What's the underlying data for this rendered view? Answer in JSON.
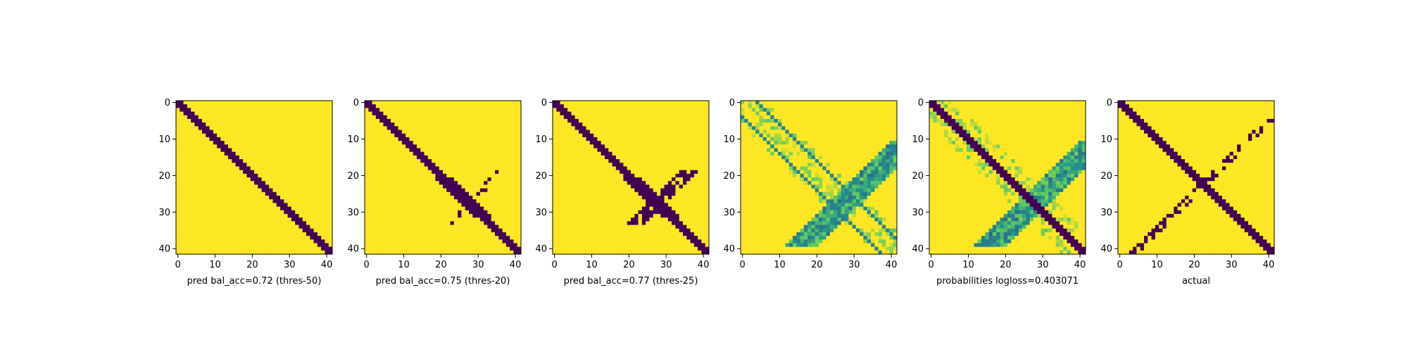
{
  "chart_data": [
    {
      "type": "heatmap",
      "kind": "diag",
      "xlabel": "pred bal_acc=0.72 (thres-50)",
      "xticks": [
        0,
        10,
        20,
        30,
        40
      ],
      "yticks": [
        0,
        10,
        20,
        30,
        40
      ],
      "xlim": [
        0,
        41
      ],
      "ylim": [
        41,
        0
      ],
      "grid": false
    },
    {
      "type": "heatmap",
      "kind": "diag",
      "xlabel": "pred bal_acc=0.75 (thres-20)",
      "xticks": [
        0,
        10,
        20,
        30,
        40
      ],
      "yticks": [
        0,
        10,
        20,
        30,
        40
      ],
      "xlim": [
        0,
        41
      ],
      "ylim": [
        41,
        0
      ],
      "grid": false
    },
    {
      "type": "heatmap",
      "kind": "diag",
      "xlabel": "pred bal_acc=0.77 (thres-25)",
      "xticks": [
        0,
        10,
        20,
        30,
        40
      ],
      "yticks": [
        0,
        10,
        20,
        30,
        40
      ],
      "xlim": [
        0,
        41
      ],
      "ylim": [
        41,
        0
      ],
      "grid": false
    },
    {
      "type": "heatmap",
      "kind": "prob",
      "xlabel": "",
      "xticks": [
        0,
        10,
        20,
        30,
        40
      ],
      "yticks": [
        0,
        10,
        20,
        30,
        40
      ],
      "xlim": [
        0,
        41
      ],
      "ylim": [
        41,
        0
      ],
      "grid": false
    },
    {
      "type": "heatmap",
      "kind": "prob",
      "xlabel": "probabilities logloss=0.403071",
      "xticks": [
        0,
        10,
        20,
        30,
        40
      ],
      "yticks": [
        0,
        10,
        20,
        30,
        40
      ],
      "xlim": [
        0,
        41
      ],
      "ylim": [
        41,
        0
      ],
      "grid": false
    },
    {
      "type": "heatmap",
      "kind": "actual",
      "xlabel": "actual",
      "xticks": [
        0,
        10,
        20,
        30,
        40
      ],
      "yticks": [
        0,
        10,
        20,
        30,
        40
      ],
      "xlim": [
        0,
        41
      ],
      "ylim": [
        41,
        0
      ],
      "grid": false
    }
  ],
  "colors": {
    "low": "#440154",
    "high": "#fde725",
    "mid": "#21918c",
    "mid_light": "#5ec962"
  }
}
